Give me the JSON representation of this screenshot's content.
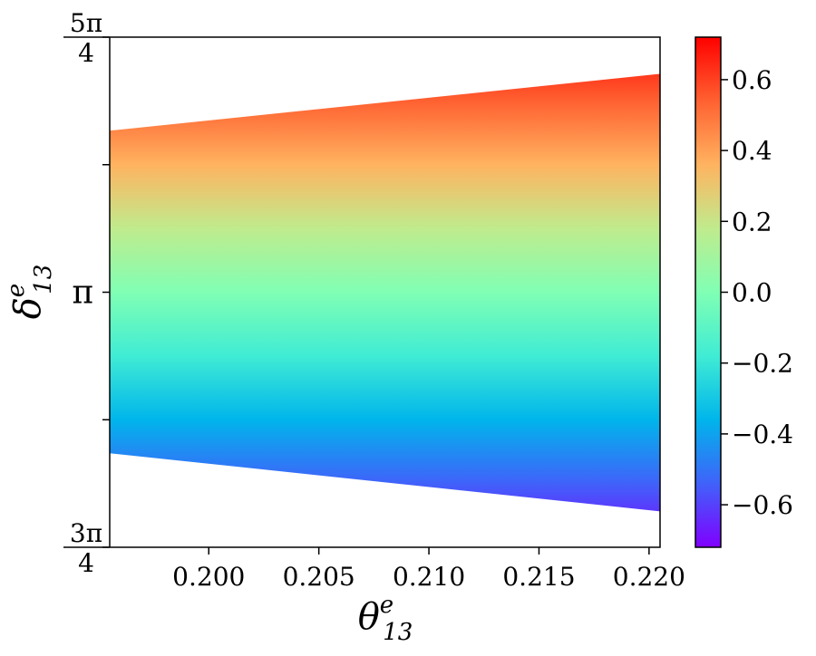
{
  "chart_data": {
    "type": "area",
    "title": "",
    "xlabel": "θ13e",
    "ylabel": "δ13e",
    "xlabel_parts": {
      "symbol": "θ",
      "sup": "e",
      "sub": "13"
    },
    "ylabel_parts": {
      "symbol": "δ",
      "sup": "e",
      "sub": "13"
    },
    "xlim": [
      0.1955,
      0.2205
    ],
    "ylim": [
      2.35619,
      3.92699
    ],
    "xticks": [
      {
        "value": 0.2,
        "label": "0.200"
      },
      {
        "value": 0.205,
        "label": "0.205"
      },
      {
        "value": 0.21,
        "label": "0.210"
      },
      {
        "value": 0.215,
        "label": "0.215"
      },
      {
        "value": 0.22,
        "label": "0.220"
      }
    ],
    "yticks": [
      {
        "value": 2.35619,
        "label": "3π/4",
        "num": "3π",
        "den": "4",
        "kind": "frac"
      },
      {
        "value": 2.74889,
        "label": "",
        "kind": "minor"
      },
      {
        "value": 3.14159,
        "label": "π",
        "kind": "plain"
      },
      {
        "value": 3.53429,
        "label": "",
        "kind": "minor"
      },
      {
        "value": 3.92699,
        "label": "5π/4",
        "num": "5π",
        "den": "4",
        "kind": "frac"
      }
    ],
    "upper_boundary": {
      "x": [
        0.1955,
        0.2205
      ],
      "y": [
        3.6391,
        3.8141
      ]
    },
    "lower_boundary": {
      "x": [
        0.1955,
        0.2205
      ],
      "y": [
        2.6456,
        2.4668
      ]
    },
    "colorbar": {
      "colormap": "rainbow",
      "range": [
        -0.72,
        0.72
      ],
      "ticks": [
        {
          "value": 0.6,
          "label": "0.6"
        },
        {
          "value": 0.4,
          "label": "0.4"
        },
        {
          "value": 0.2,
          "label": "0.2"
        },
        {
          "value": 0.0,
          "label": "0.0"
        },
        {
          "value": -0.2,
          "label": "−0.2"
        },
        {
          "value": -0.4,
          "label": "−0.4"
        },
        {
          "value": -0.6,
          "label": "−0.6"
        }
      ]
    },
    "grid": false,
    "legend": "none"
  }
}
